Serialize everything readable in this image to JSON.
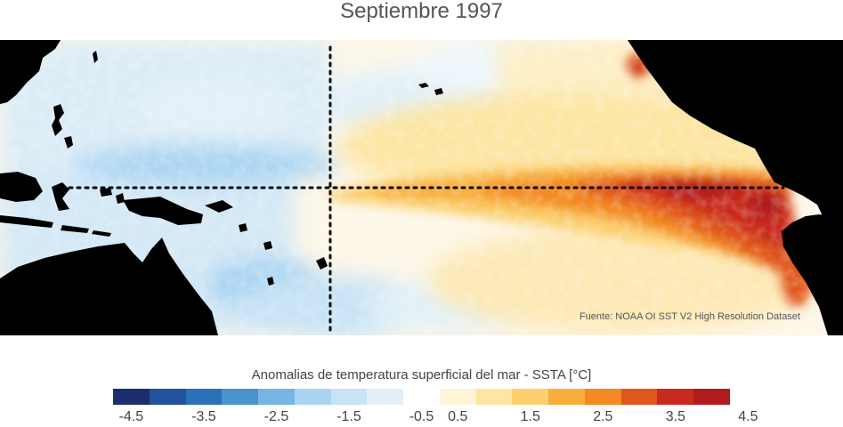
{
  "map": {
    "title": "Septiembre 1997",
    "source": "Fuente: NOAA OI SST V2 High Resolution Dataset",
    "land_color": "#000000",
    "reference_lines": [
      "dateline",
      "equator"
    ]
  },
  "colorbar": {
    "title": "Anomalias de temperatura superficial del mar - SSTA  [°C]",
    "colors": [
      "#1c2e6b",
      "#21539c",
      "#2c70b8",
      "#4a93d0",
      "#78b5e3",
      "#a9d4f2",
      "#c7e3f5",
      "#e2f0f8",
      "#ffffff",
      "#fef5d6",
      "#fde5a3",
      "#fbcf6d",
      "#f8ae3d",
      "#f38a23",
      "#e0561f",
      "#c92a1f",
      "#b01c1e"
    ],
    "ticks": [
      "-4.5",
      "-3.5",
      "-2.5",
      "-1.5",
      "-0.5",
      "0.5",
      "1.5",
      "2.5",
      "3.5",
      "4.5"
    ]
  }
}
